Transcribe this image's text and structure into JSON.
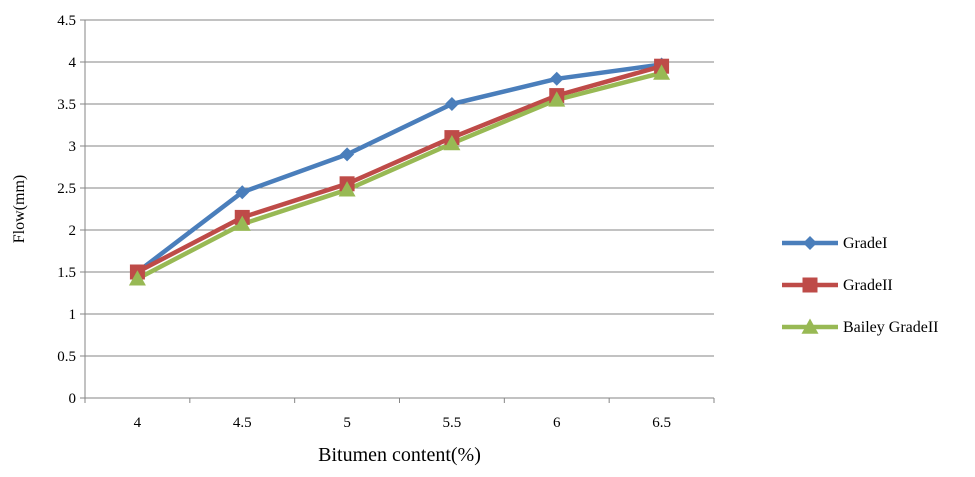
{
  "chart_data": {
    "type": "line",
    "title": "",
    "xlabel": "Bitumen content(%)",
    "ylabel": "Flow(mm)",
    "categories": [
      "4",
      "4.5",
      "5",
      "5.5",
      "6",
      "6.5"
    ],
    "ylim": [
      0,
      4.5
    ],
    "yticks": [
      "0",
      "0.5",
      "1",
      "1.5",
      "2",
      "2.5",
      "3",
      "3.5",
      "4",
      "4.5"
    ],
    "grid": "horizontal",
    "legend_position": "right",
    "series": [
      {
        "name": "GradeI",
        "values": [
          1.5,
          2.45,
          2.9,
          3.5,
          3.8,
          3.97
        ],
        "color": "#4a7ebb",
        "marker": "diamond"
      },
      {
        "name": "GradeII",
        "values": [
          1.5,
          2.15,
          2.55,
          3.1,
          3.6,
          3.95
        ],
        "color": "#be4b48",
        "marker": "square"
      },
      {
        "name": "Bailey GradeII",
        "values": [
          1.42,
          2.07,
          2.48,
          3.03,
          3.55,
          3.87
        ],
        "color": "#98b954",
        "marker": "triangle"
      }
    ]
  }
}
